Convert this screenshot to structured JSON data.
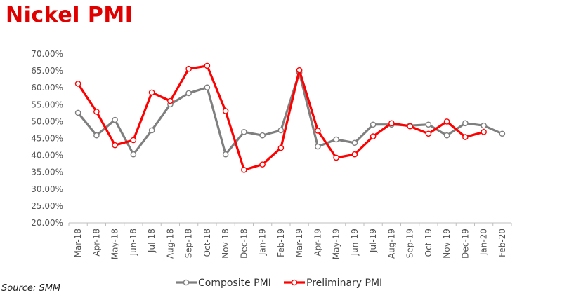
{
  "title": "Nickel PMI",
  "source": "Source: SMM",
  "chart_data": {
    "type": "line",
    "title": "Nickel PMI",
    "xlabel": "",
    "ylabel": "",
    "ylim": [
      0.2,
      0.7
    ],
    "yticks": [
      "20.00%",
      "25.00%",
      "30.00%",
      "35.00%",
      "40.00%",
      "45.00%",
      "50.00%",
      "55.00%",
      "60.00%",
      "65.00%",
      "70.00%"
    ],
    "grid": false,
    "legend": "bottom",
    "categories": [
      "Mar-18",
      "Apr-18",
      "May-18",
      "Jun-18",
      "Jul-18",
      "Aug-18",
      "Sep-18",
      "Oct-18",
      "Nov-18",
      "Dec-18",
      "Jan-19",
      "Feb-19",
      "Mar-19",
      "Apr-19",
      "May-19",
      "Jun-19",
      "Jul-19",
      "Aug-19",
      "Sep-19",
      "Oct-19",
      "Nov-19",
      "Dec-19",
      "Jan-20",
      "Feb-20"
    ],
    "series": [
      {
        "name": "Composite PMI",
        "color": "#7f7f7f",
        "values": [
          0.526,
          0.459,
          0.505,
          0.403,
          0.474,
          0.551,
          0.584,
          0.601,
          0.403,
          0.469,
          0.459,
          0.474,
          0.645,
          0.426,
          0.447,
          0.437,
          0.491,
          0.491,
          0.488,
          0.491,
          0.459,
          0.495,
          0.488,
          0.464
        ]
      },
      {
        "name": "Preliminary PMI",
        "color": "#ff0000",
        "values": [
          0.612,
          0.529,
          0.43,
          0.445,
          0.586,
          0.561,
          0.656,
          0.665,
          0.531,
          0.357,
          0.373,
          0.422,
          0.652,
          0.473,
          0.393,
          0.403,
          0.456,
          0.495,
          0.486,
          0.464,
          0.5,
          0.454,
          0.469,
          null
        ]
      }
    ]
  }
}
